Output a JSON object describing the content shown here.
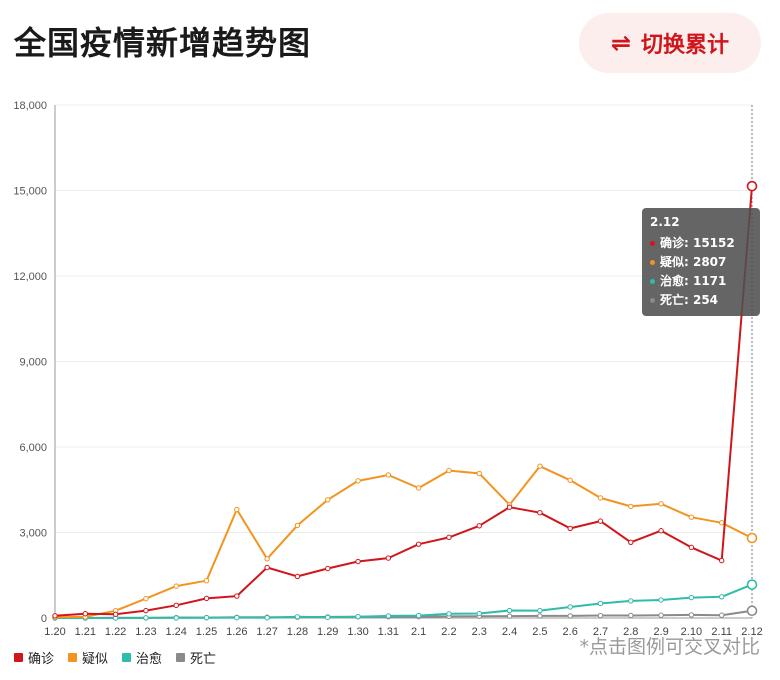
{
  "header": {
    "title": "全国疫情新增趋势图",
    "toggle_icon": "⇌",
    "toggle_label": "切换累计"
  },
  "hint": "*点击图例可交叉对比",
  "colors": {
    "confirmed": "#d0161b",
    "suspected": "#f2941f",
    "recovered": "#2fbca8",
    "deaths": "#8a8a8a"
  },
  "tooltip": {
    "title": "2.12",
    "rows": [
      {
        "name": "确诊",
        "value": "15152",
        "text": "确诊: 15152"
      },
      {
        "name": "疑似",
        "value": "2807",
        "text": "疑似: 2807"
      },
      {
        "name": "治愈",
        "value": "1171",
        "text": "治愈: 1171"
      },
      {
        "name": "死亡",
        "value": "254",
        "text": "死亡: 254"
      }
    ]
  },
  "chart_data": {
    "type": "line",
    "title": "全国疫情新增趋势图",
    "x": [
      "1.20",
      "1.21",
      "1.22",
      "1.23",
      "1.24",
      "1.25",
      "1.26",
      "1.27",
      "1.28",
      "1.29",
      "1.30",
      "1.31",
      "2.1",
      "2.2",
      "2.3",
      "2.4",
      "2.5",
      "2.6",
      "2.7",
      "2.8",
      "2.9",
      "2.10",
      "2.11",
      "2.12"
    ],
    "ylim": [
      0,
      18000
    ],
    "yticks": [
      "0",
      "3,000",
      "6,000",
      "9,000",
      "12,000",
      "15,000",
      "18,000"
    ],
    "ytick_values": [
      0,
      3000,
      6000,
      9000,
      12000,
      15000,
      18000
    ],
    "grid": true,
    "legend_position": "bottom-left",
    "series": [
      {
        "name": "确诊",
        "color_key": "confirmed",
        "values": [
          77,
          149,
          131,
          259,
          444,
          688,
          769,
          1771,
          1459,
          1737,
          1982,
          2102,
          2590,
          2829,
          3235,
          3887,
          3694,
          3143,
          3399,
          2656,
          3062,
          2478,
          2015,
          15152
        ]
      },
      {
        "name": "疑似",
        "color_key": "suspected",
        "values": [
          27,
          39,
          257,
          680,
          1118,
          1309,
          3806,
          2077,
          3248,
          4148,
          4812,
          5019,
          4562,
          5173,
          5072,
          3971,
          5328,
          4833,
          4214,
          3916,
          4008,
          3536,
          3342,
          2807
        ]
      },
      {
        "name": "治愈",
        "color_key": "recovered",
        "values": [
          0,
          0,
          0,
          6,
          3,
          11,
          13,
          9,
          43,
          21,
          47,
          72,
          85,
          147,
          157,
          262,
          261,
          387,
          510,
          600,
          632,
          716,
          744,
          1171
        ]
      },
      {
        "name": "死亡",
        "color_key": "deaths",
        "values": [
          0,
          0,
          8,
          1,
          16,
          15,
          24,
          26,
          26,
          38,
          43,
          46,
          45,
          57,
          64,
          65,
          73,
          73,
          86,
          89,
          97,
          108,
          97,
          254
        ]
      }
    ]
  }
}
